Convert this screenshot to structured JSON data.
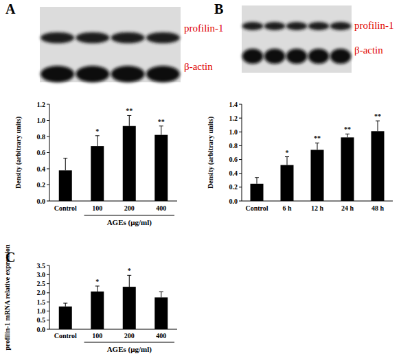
{
  "chart_data": [
    {
      "type": "bar",
      "panel": "A",
      "blot_labels": [
        "profilin-1",
        "β-actin"
      ],
      "y_label": "Density (arbitrary units)",
      "group_label": "AGEs (μg/ml)",
      "categories": [
        "Control",
        "100",
        "200",
        "400"
      ],
      "values": [
        0.38,
        0.68,
        0.93,
        0.82
      ],
      "errors": [
        0.15,
        0.13,
        0.13,
        0.11
      ],
      "annotations": [
        null,
        "*",
        "**",
        "**"
      ],
      "color": "#000000",
      "ylim": [
        0,
        1.2
      ],
      "yticks": [
        {
          "value": 0,
          "label": "0.0"
        },
        0.2,
        0.4,
        0.6,
        0.8,
        {
          "value": 1,
          "label": "1.0"
        },
        1.2
      ]
    },
    {
      "type": "bar",
      "panel": "B",
      "blot_labels": [
        "profilin-1",
        "β-actin"
      ],
      "y_label": "Density (arbitrary units)",
      "categories": [
        "Control",
        "6 h",
        "12 h",
        "24 h",
        "48 h"
      ],
      "values": [
        0.25,
        0.52,
        0.74,
        0.92,
        1.01
      ],
      "errors": [
        0.09,
        0.12,
        0.1,
        0.05,
        0.15
      ],
      "annotations": [
        null,
        "*",
        "**",
        "**",
        "**"
      ],
      "color": "#000000",
      "ylim": [
        0,
        1.4
      ],
      "yticks": [
        {
          "value": 0,
          "label": "0.0"
        },
        0.2,
        0.4,
        0.6,
        0.8,
        {
          "value": 1,
          "label": "1.0"
        },
        1.2,
        1.4
      ]
    },
    {
      "type": "bar",
      "panel": "C",
      "y_label": "profilin-1 mRNA relative expression",
      "group_label": "AGEs (μg/ml)",
      "categories": [
        "Control",
        "100",
        "200",
        "400"
      ],
      "values": [
        1.25,
        2.07,
        2.33,
        1.75
      ],
      "errors": [
        0.18,
        0.3,
        0.63,
        0.3
      ],
      "annotations": [
        null,
        "*",
        "*",
        null
      ],
      "color": "#000000",
      "ylim": [
        0,
        3.5
      ],
      "yticks": [
        {
          "value": 0,
          "label": "0.0"
        },
        0.5,
        {
          "value": 1,
          "label": "1.0"
        },
        1.5,
        {
          "value": 2,
          "label": "2.0"
        },
        2.5,
        {
          "value": 3,
          "label": "3.0"
        },
        3.5
      ]
    }
  ]
}
